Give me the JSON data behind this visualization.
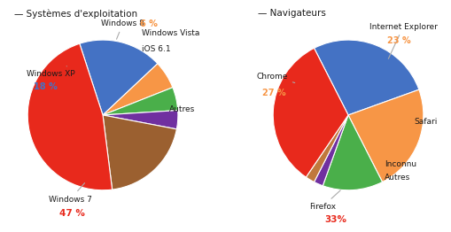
{
  "title1": "Systèmes d'exploitation",
  "title2": "Navigateurs",
  "os_labels": [
    "Windows XP",
    "Windows 8",
    "Windows Vista",
    "iOS 6.1",
    "Autres",
    "Windows 7"
  ],
  "os_values": [
    18,
    6,
    5,
    4,
    20,
    47
  ],
  "os_colors": [
    "#4472c4",
    "#f79646",
    "#4aaf4a",
    "#7030a0",
    "#9b6030",
    "#e8291c"
  ],
  "nav_labels": [
    "Chrome",
    "Internet Explorer",
    "Safari",
    "Inconnu",
    "Autres",
    "Firefox"
  ],
  "nav_values": [
    27,
    23,
    13,
    2,
    2,
    33
  ],
  "nav_colors": [
    "#4472c4",
    "#f79646",
    "#4aaf4a",
    "#7030a0",
    "#c0783c",
    "#e8291c"
  ],
  "label_black": "#1a1a1a",
  "label_orange": "#f79646",
  "label_blue": "#4472c4",
  "label_red": "#e8291c",
  "bg_color": "#ffffff"
}
